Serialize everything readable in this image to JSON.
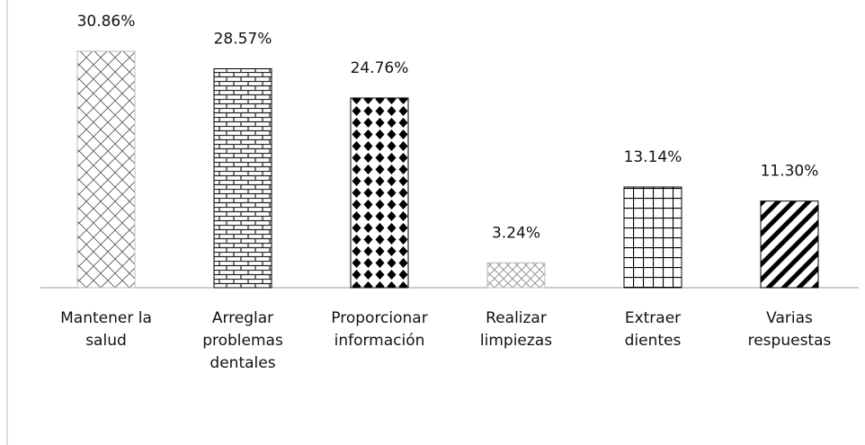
{
  "chart_data": {
    "type": "bar",
    "categories": [
      "Mantener la salud",
      "Arreglar problemas dentales",
      "Proporcionar información",
      "Realizar limpiezas",
      "Extraer dientes",
      "Varias respuestas"
    ],
    "values": [
      30.86,
      28.57,
      24.76,
      3.24,
      13.14,
      11.3
    ],
    "value_labels": [
      "30.86%",
      "28.57%",
      "24.76%",
      "3.24%",
      "13.14%",
      "11.30%"
    ],
    "color": "#000000"
  }
}
